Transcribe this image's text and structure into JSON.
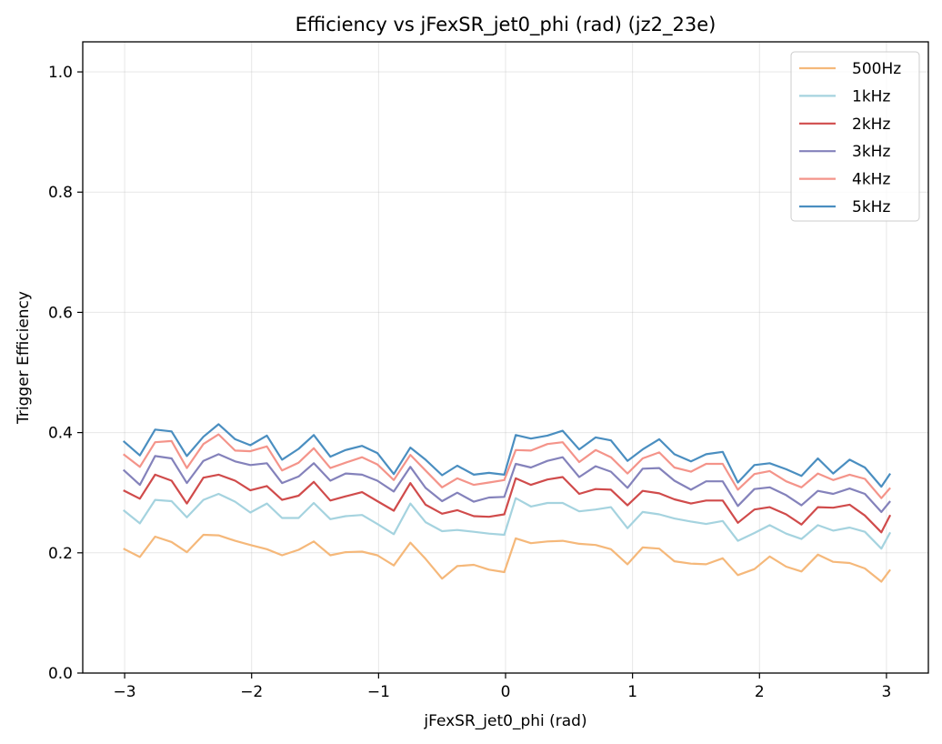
{
  "chart_data": {
    "type": "line",
    "title": "Efficiency vs jFexSR_jet0_phi (rad) (jz2_23e)",
    "xlabel": "jFexSR_jet0_phi (rad)",
    "ylabel": "Trigger Efficiency",
    "xlim": [
      -3.33,
      3.33
    ],
    "ylim": [
      0.0,
      1.05
    ],
    "xticks": [
      -3,
      -2,
      -1,
      0,
      1,
      2,
      3
    ],
    "xtick_labels": [
      "−3",
      "−2",
      "−1",
      "0",
      "1",
      "2",
      "3"
    ],
    "yticks": [
      0.0,
      0.2,
      0.4,
      0.6,
      0.8,
      1.0
    ],
    "ytick_labels": [
      "0.0",
      "0.2",
      "0.4",
      "0.6",
      "0.8",
      "1.0"
    ],
    "grid": true,
    "legend_position": "top-right",
    "x": [
      -3.01,
      -2.88,
      -2.76,
      -2.63,
      -2.51,
      -2.38,
      -2.26,
      -2.13,
      -2.01,
      -1.88,
      -1.76,
      -1.63,
      -1.51,
      -1.38,
      -1.26,
      -1.13,
      -1.01,
      -0.88,
      -0.75,
      -0.63,
      -0.5,
      -0.38,
      -0.25,
      -0.13,
      -0.01,
      0.08,
      0.2,
      0.33,
      0.45,
      0.58,
      0.71,
      0.83,
      0.96,
      1.08,
      1.21,
      1.33,
      1.46,
      1.58,
      1.71,
      1.83,
      1.96,
      2.08,
      2.21,
      2.33,
      2.46,
      2.58,
      2.71,
      2.83,
      2.96,
      3.03
    ],
    "series": [
      {
        "name": "500Hz",
        "color": "#f5b87a",
        "values": [
          0.207,
          0.193,
          0.227,
          0.218,
          0.201,
          0.23,
          0.229,
          0.22,
          0.213,
          0.206,
          0.196,
          0.205,
          0.219,
          0.196,
          0.201,
          0.202,
          0.196,
          0.179,
          0.217,
          0.19,
          0.157,
          0.178,
          0.18,
          0.172,
          0.168,
          0.224,
          0.216,
          0.219,
          0.22,
          0.215,
          0.213,
          0.206,
          0.181,
          0.209,
          0.207,
          0.186,
          0.182,
          0.181,
          0.191,
          0.163,
          0.173,
          0.194,
          0.177,
          0.169,
          0.197,
          0.185,
          0.183,
          0.174,
          0.152,
          0.172
        ]
      },
      {
        "name": "1kHz",
        "color": "#a5d3df",
        "values": [
          0.271,
          0.249,
          0.288,
          0.286,
          0.259,
          0.288,
          0.298,
          0.285,
          0.267,
          0.282,
          0.258,
          0.258,
          0.283,
          0.256,
          0.261,
          0.263,
          0.248,
          0.231,
          0.282,
          0.251,
          0.236,
          0.238,
          0.235,
          0.232,
          0.23,
          0.291,
          0.277,
          0.283,
          0.283,
          0.269,
          0.272,
          0.276,
          0.241,
          0.268,
          0.264,
          0.257,
          0.252,
          0.248,
          0.253,
          0.22,
          0.233,
          0.246,
          0.232,
          0.223,
          0.246,
          0.237,
          0.242,
          0.235,
          0.207,
          0.234
        ]
      },
      {
        "name": "2kHz",
        "color": "#d04b4b",
        "values": [
          0.304,
          0.29,
          0.33,
          0.32,
          0.282,
          0.325,
          0.33,
          0.32,
          0.304,
          0.311,
          0.288,
          0.295,
          0.318,
          0.287,
          0.294,
          0.301,
          0.286,
          0.27,
          0.316,
          0.28,
          0.265,
          0.271,
          0.261,
          0.26,
          0.264,
          0.324,
          0.313,
          0.322,
          0.326,
          0.298,
          0.306,
          0.305,
          0.279,
          0.303,
          0.299,
          0.289,
          0.282,
          0.287,
          0.287,
          0.25,
          0.272,
          0.276,
          0.264,
          0.247,
          0.276,
          0.275,
          0.28,
          0.262,
          0.234,
          0.263
        ]
      },
      {
        "name": "3kHz",
        "color": "#8482bb",
        "values": [
          0.338,
          0.313,
          0.361,
          0.357,
          0.316,
          0.353,
          0.364,
          0.352,
          0.346,
          0.349,
          0.316,
          0.327,
          0.349,
          0.32,
          0.332,
          0.33,
          0.32,
          0.302,
          0.343,
          0.308,
          0.286,
          0.3,
          0.285,
          0.292,
          0.293,
          0.348,
          0.342,
          0.353,
          0.359,
          0.326,
          0.344,
          0.335,
          0.308,
          0.34,
          0.341,
          0.32,
          0.305,
          0.319,
          0.319,
          0.278,
          0.306,
          0.309,
          0.296,
          0.279,
          0.303,
          0.298,
          0.307,
          0.298,
          0.268,
          0.286
        ]
      },
      {
        "name": "4kHz",
        "color": "#f4948a",
        "values": [
          0.364,
          0.343,
          0.384,
          0.386,
          0.341,
          0.381,
          0.397,
          0.37,
          0.369,
          0.377,
          0.337,
          0.35,
          0.374,
          0.341,
          0.35,
          0.359,
          0.347,
          0.321,
          0.363,
          0.337,
          0.309,
          0.324,
          0.313,
          0.317,
          0.321,
          0.371,
          0.37,
          0.381,
          0.384,
          0.351,
          0.371,
          0.359,
          0.332,
          0.357,
          0.367,
          0.342,
          0.335,
          0.348,
          0.348,
          0.305,
          0.331,
          0.336,
          0.319,
          0.309,
          0.332,
          0.321,
          0.33,
          0.323,
          0.291,
          0.308
        ]
      },
      {
        "name": "5kHz",
        "color": "#4a8ec0",
        "values": [
          0.386,
          0.362,
          0.405,
          0.402,
          0.361,
          0.393,
          0.414,
          0.389,
          0.379,
          0.395,
          0.355,
          0.373,
          0.396,
          0.36,
          0.371,
          0.378,
          0.366,
          0.331,
          0.375,
          0.355,
          0.329,
          0.345,
          0.33,
          0.333,
          0.33,
          0.396,
          0.39,
          0.395,
          0.403,
          0.372,
          0.392,
          0.387,
          0.353,
          0.372,
          0.389,
          0.364,
          0.352,
          0.364,
          0.368,
          0.317,
          0.346,
          0.349,
          0.339,
          0.328,
          0.357,
          0.332,
          0.355,
          0.342,
          0.31,
          0.332
        ]
      }
    ]
  }
}
